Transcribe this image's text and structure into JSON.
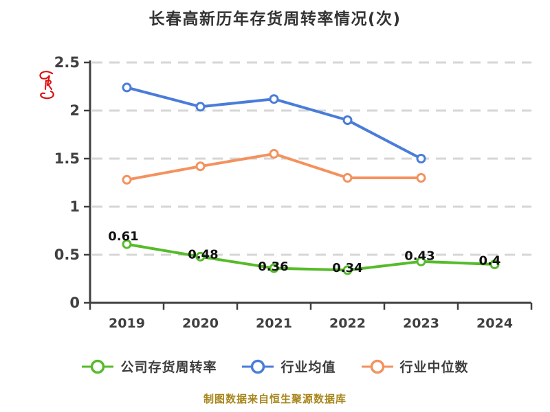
{
  "title": "长春高新历年存货周转率情况(次)",
  "footer": "制图数据来自恒生聚源数据库",
  "watermark_icon": "red-scribble-logo",
  "colors": {
    "company_series": "#56bb2a",
    "industry_mean_series": "#4a7cd9",
    "industry_median_series": "#f3925e",
    "gridline": "#d6d6d6",
    "axis": "#3f3f3f",
    "title_text": "#333333",
    "point_label_text": "#111111",
    "footer_text": "#a6851a",
    "watermark_red": "#dd1111",
    "marker_fill": "#ffffff"
  },
  "chart_data": {
    "type": "line",
    "title": "长春高新历年存货周转率情况(次)",
    "xlabel": "",
    "ylabel": "",
    "categories": [
      "2019",
      "2020",
      "2021",
      "2022",
      "2023",
      "2024"
    ],
    "series": [
      {
        "name": "公司存货周转率",
        "color": "#56bb2a",
        "values": [
          0.61,
          0.48,
          0.36,
          0.34,
          0.43,
          0.4
        ],
        "point_labels": [
          "0.61",
          "0.48",
          "0.36",
          "0.34",
          "0.43",
          "0.4"
        ]
      },
      {
        "name": "行业均值",
        "color": "#4a7cd9",
        "values": [
          2.24,
          2.04,
          2.12,
          1.9,
          1.5
        ],
        "point_labels": []
      },
      {
        "name": "行业中位数",
        "color": "#f3925e",
        "values": [
          1.28,
          1.42,
          1.55,
          1.3,
          1.3
        ],
        "point_labels": []
      }
    ],
    "ylim": [
      0,
      2.5
    ],
    "yticks": [
      "0",
      "0.5",
      "1",
      "1.5",
      "2",
      "2.5"
    ],
    "grid": true,
    "grid_style": "dashed",
    "legend_position": "bottom",
    "marker": "circle-white-fill"
  }
}
